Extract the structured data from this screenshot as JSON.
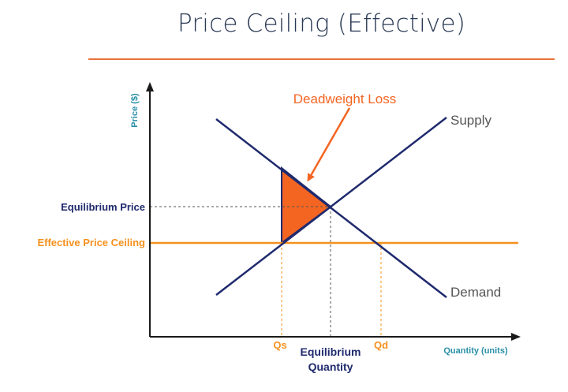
{
  "title": "Price Ceiling (Effective)",
  "colors": {
    "curve": "#1f2a6e",
    "ceiling": "#f5911e",
    "deadweight": "#f46522",
    "axis": "#1a1a1a",
    "axis_label": "#2a8fa8",
    "title": "#2b3a55",
    "rule": "#e8733c"
  },
  "axes": {
    "y_label": "Price ($)",
    "x_label": "Quantity (units)"
  },
  "curves": {
    "supply_label": "Supply",
    "demand_label": "Demand"
  },
  "price_labels": {
    "equilibrium": "Equilibrium Price",
    "ceiling": "Effective Price Ceiling"
  },
  "quantity_labels": {
    "qs": "Qs",
    "eq_line1": "Equilibrium",
    "eq_line2": "Quantity",
    "qd": "Qd"
  },
  "annotation": "Deadweight Loss"
}
